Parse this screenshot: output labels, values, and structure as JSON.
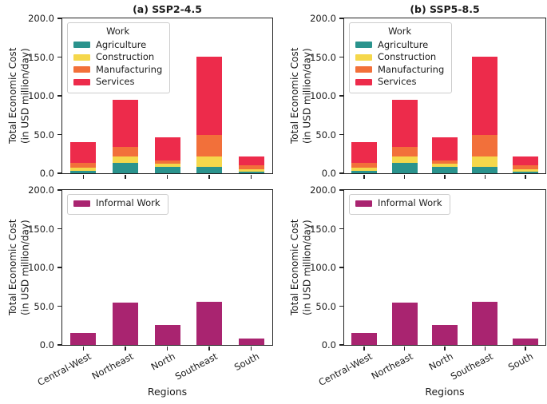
{
  "figure": {
    "background": "#ffffff",
    "ylabel_line1": "Total Economic Cost",
    "ylabel_line2": "(in USD million/day)",
    "xlabel": "Regions",
    "text_color": "#1c1c1c",
    "spine_color": "#222222"
  },
  "chart_data": [
    {
      "id": "ssp2-formal",
      "type": "bar",
      "stacked": true,
      "title": "(a) SSP2-4.5",
      "legend_title": "Work",
      "legend_position": "upper-left",
      "grid": false,
      "categories": [
        "Central-West",
        "Northeast",
        "North",
        "Southeast",
        "South"
      ],
      "series": [
        {
          "name": "Agriculture",
          "color": "#2a938d",
          "values": [
            3.5,
            13,
            8,
            8,
            2.5
          ]
        },
        {
          "name": "Construction",
          "color": "#f5d74b",
          "values": [
            4,
            9,
            4,
            14,
            3
          ]
        },
        {
          "name": "Manufacturing",
          "color": "#f2703a",
          "values": [
            5.5,
            12,
            5,
            28,
            5
          ]
        },
        {
          "name": "Services",
          "color": "#ed2b4b",
          "values": [
            27,
            61,
            29,
            101,
            11.5
          ]
        }
      ],
      "totals": [
        40,
        95,
        46,
        151,
        22
      ],
      "ylim": [
        0,
        200
      ],
      "ytick_labels": [
        "0.0",
        "50.0",
        "100.0",
        "150.0",
        "200.0"
      ],
      "show_xticklabels": false,
      "xlabel": ""
    },
    {
      "id": "ssp5-formal",
      "type": "bar",
      "stacked": true,
      "title": "(b) SSP5-8.5",
      "legend_title": "Work",
      "legend_position": "upper-left",
      "grid": false,
      "categories": [
        "Central-West",
        "Northeast",
        "North",
        "Southeast",
        "South"
      ],
      "series": [
        {
          "name": "Agriculture",
          "color": "#2a938d",
          "values": [
            3.5,
            13,
            8,
            8,
            2.5
          ]
        },
        {
          "name": "Construction",
          "color": "#f5d74b",
          "values": [
            4,
            9,
            4,
            14,
            3
          ]
        },
        {
          "name": "Manufacturing",
          "color": "#f2703a",
          "values": [
            5.5,
            12,
            5,
            28,
            5
          ]
        },
        {
          "name": "Services",
          "color": "#ed2b4b",
          "values": [
            27,
            61,
            29,
            101,
            11.5
          ]
        }
      ],
      "totals": [
        40,
        95,
        46,
        151,
        22
      ],
      "ylim": [
        0,
        200
      ],
      "ytick_labels": [
        "0.0",
        "50.0",
        "100.0",
        "150.0",
        "200.0"
      ],
      "show_xticklabels": false,
      "xlabel": ""
    },
    {
      "id": "ssp2-informal",
      "type": "bar",
      "stacked": false,
      "title": "",
      "legend_title": "",
      "legend_position": "upper-left",
      "grid": false,
      "categories": [
        "Central-West",
        "Northeast",
        "North",
        "Southeast",
        "South"
      ],
      "series": [
        {
          "name": "Informal Work",
          "color": "#a92470",
          "values": [
            15,
            55,
            26,
            56,
            8
          ]
        }
      ],
      "totals": [
        15,
        55,
        26,
        56,
        8
      ],
      "ylim": [
        0,
        200
      ],
      "ytick_labels": [
        "0.0",
        "50.0",
        "100.0",
        "150.0",
        "200.0"
      ],
      "show_xticklabels": true,
      "xlabel": "Regions"
    },
    {
      "id": "ssp5-informal",
      "type": "bar",
      "stacked": false,
      "title": "",
      "legend_title": "",
      "legend_position": "upper-left",
      "grid": false,
      "categories": [
        "Central-West",
        "Northeast",
        "North",
        "Southeast",
        "South"
      ],
      "series": [
        {
          "name": "Informal Work",
          "color": "#a92470",
          "values": [
            15,
            55,
            26,
            56,
            8
          ]
        }
      ],
      "totals": [
        15,
        55,
        26,
        56,
        8
      ],
      "ylim": [
        0,
        200
      ],
      "ytick_labels": [
        "0.0",
        "50.0",
        "100.0",
        "150.0",
        "200.0"
      ],
      "show_xticklabels": true,
      "xlabel": "Regions"
    }
  ]
}
